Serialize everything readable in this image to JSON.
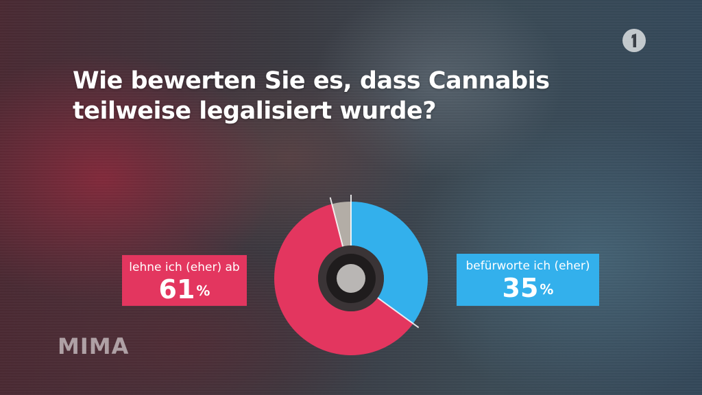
{
  "title": "Wie bewerten Sie es, dass Cannabis teilweise legalisiert wurde?",
  "watermark": "MIMA",
  "channel_logo_icon": "ard-one-logo-icon",
  "colors": {
    "ablehnung": "#e3365f",
    "befuerwortung": "#33b0ec",
    "rest": "#b3ada6"
  },
  "chart_data": {
    "type": "pie",
    "style": "donut",
    "title": "Wie bewerten Sie es, dass Cannabis teilweise legalisiert wurde?",
    "slices": [
      {
        "label": "befürworte ich (eher)",
        "value": 35,
        "color": "#33b0ec"
      },
      {
        "label": "lehne ich (eher) ab",
        "value": 61,
        "color": "#e3365f"
      },
      {
        "label": "",
        "value": 4,
        "color": "#b3ada6"
      }
    ],
    "unit": "%"
  },
  "labels": {
    "left": {
      "text": "lehne ich (eher) ab",
      "value": "61",
      "unit": "%"
    },
    "right": {
      "text": "befürworte ich (eher)",
      "value": "35",
      "unit": "%"
    }
  }
}
